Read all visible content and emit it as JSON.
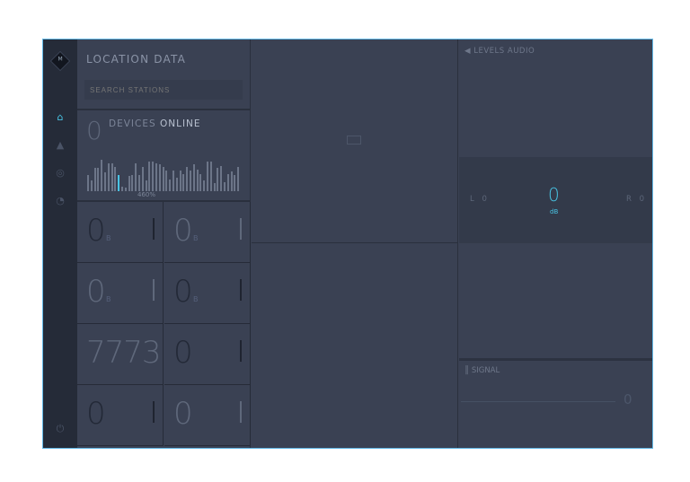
{
  "sidebar": {
    "logo_text": "M",
    "items": [
      {
        "icon": "home-icon",
        "active": true
      },
      {
        "icon": "rocket-icon"
      },
      {
        "icon": "fingerprint-icon"
      },
      {
        "icon": "gauge-icon"
      }
    ],
    "power_icon": "power-icon"
  },
  "location": {
    "title": "LOCATION DATA",
    "search_placeholder": "SEARCH STATIONS"
  },
  "devices": {
    "count": "0",
    "label_a": "DEVICES",
    "label_b": "ONLINE",
    "highlight_label": "460%",
    "bars": [
      14,
      9,
      20,
      20,
      27,
      16,
      24,
      24,
      21,
      14,
      4,
      3,
      13,
      14,
      24,
      14,
      21,
      9,
      26,
      26,
      24,
      23,
      21,
      18,
      10,
      18,
      12,
      18,
      15,
      21,
      18,
      23,
      19,
      15,
      9,
      26,
      26,
      7,
      20,
      22,
      8,
      15,
      17,
      14,
      21
    ],
    "highlight_index": 9
  },
  "cells": [
    {
      "value": "0",
      "unit": "B",
      "style": "dark"
    },
    {
      "value": "0",
      "unit": "B",
      "style": "light"
    },
    {
      "value": "0",
      "unit": "B",
      "style": "light"
    },
    {
      "value": "0",
      "unit": "B",
      "style": "dark"
    },
    {
      "value": "7773",
      "unit": "",
      "style": "light"
    },
    {
      "value": "0",
      "unit": "",
      "style": "dark"
    },
    {
      "value": "0",
      "unit": "",
      "style": "dark"
    },
    {
      "value": "0",
      "unit": "",
      "style": "light"
    }
  ],
  "audio": {
    "title": "LEVELS AUDIO",
    "left": "L 0",
    "right": "R 0",
    "value": "0",
    "unit": "dB",
    "accent": "#48c4e4"
  },
  "signal": {
    "title": "SIGNAL",
    "value": "0"
  }
}
